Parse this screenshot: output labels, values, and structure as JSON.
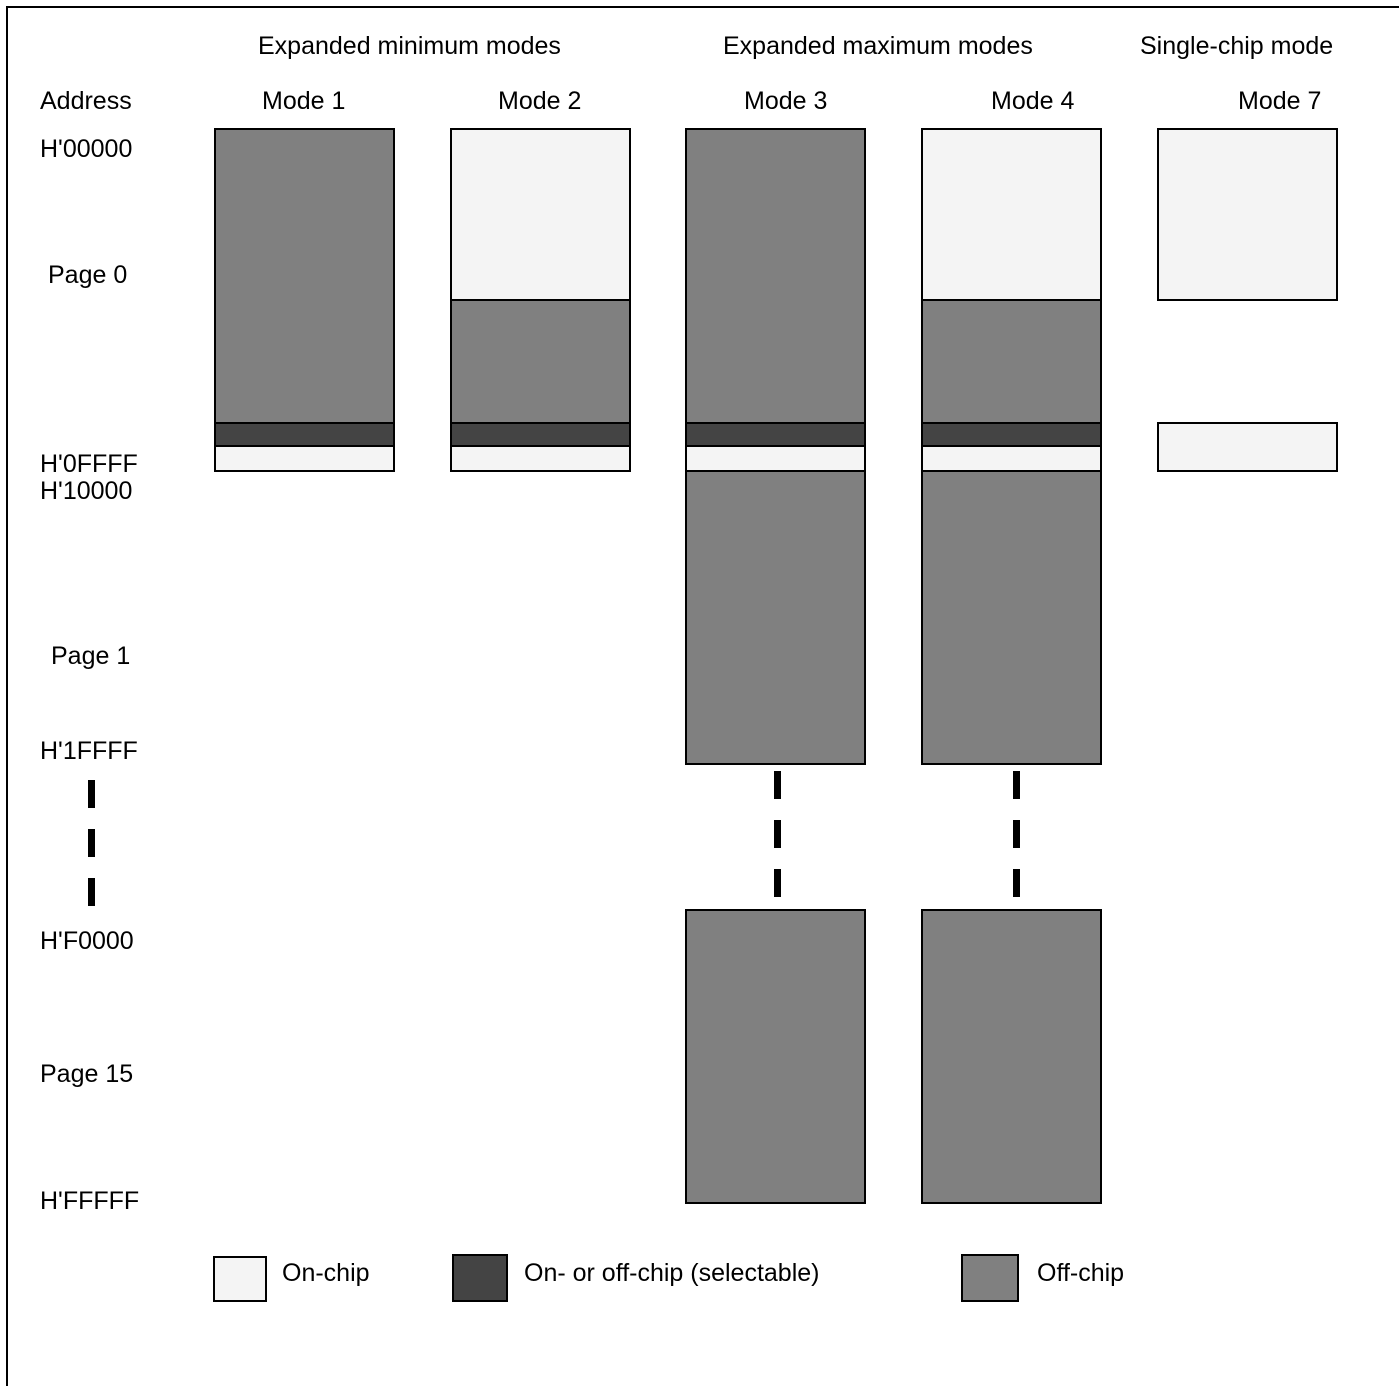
{
  "groups": {
    "expanded_min": "Expanded minimum modes",
    "expanded_max": "Expanded maximum modes",
    "single_chip": "Single-chip mode"
  },
  "address_header": "Address",
  "modes": [
    "Mode 1",
    "Mode 2",
    "Mode 3",
    "Mode 4",
    "Mode 7"
  ],
  "addresses": {
    "a00000": "H'00000",
    "page0": "Page 0",
    "a0ffff": "H'0FFFF",
    "a10000": "H'10000",
    "page1": "Page 1",
    "a1ffff": "H'1FFFF",
    "af0000": "H'F0000",
    "page15": "Page 15",
    "afffff": "H'FFFFF"
  },
  "legend": {
    "on_chip": "On-chip",
    "selectable": "On- or off-chip (selectable)",
    "off_chip": "Off-chip"
  },
  "colors": {
    "on_chip": "#f4f4f4",
    "selectable": "#444444",
    "off_chip": "#808080"
  }
}
